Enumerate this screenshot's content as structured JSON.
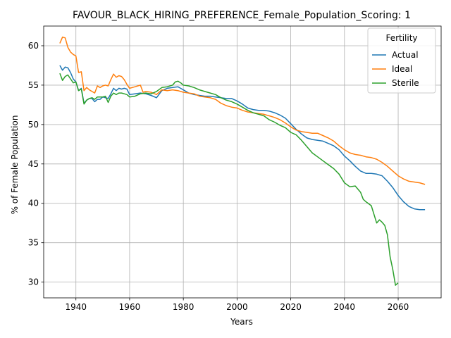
{
  "chart_data": {
    "type": "line",
    "title": "FAVOUR_BLACK_HIRING_PREFERENCE_Female_Population_Scoring: 1",
    "xlabel": "Years",
    "ylabel": "% of Female Population",
    "xlim": [
      1928,
      2076
    ],
    "ylim": [
      28,
      62.5
    ],
    "xticks": [
      1940,
      1960,
      1980,
      2000,
      2020,
      2040,
      2060
    ],
    "yticks": [
      30,
      35,
      40,
      45,
      50,
      55,
      60
    ],
    "grid": true,
    "legend": {
      "title": "Fertility",
      "placement": "top-right"
    },
    "series": [
      {
        "name": "Actual",
        "color": "#1f77b4",
        "points": [
          [
            1934,
            57.5
          ],
          [
            1935,
            56.9
          ],
          [
            1936,
            57.3
          ],
          [
            1937,
            57.2
          ],
          [
            1938,
            56.6
          ],
          [
            1939,
            55.8
          ],
          [
            1940,
            55.4
          ],
          [
            1941,
            54.3
          ],
          [
            1942,
            54.6
          ],
          [
            1943,
            52.7
          ],
          [
            1944,
            53.1
          ],
          [
            1945,
            53.3
          ],
          [
            1946,
            53.3
          ],
          [
            1947,
            52.9
          ],
          [
            1948,
            53.2
          ],
          [
            1949,
            53.2
          ],
          [
            1950,
            53.5
          ],
          [
            1951,
            53.4
          ],
          [
            1952,
            53.3
          ],
          [
            1953,
            53.9
          ],
          [
            1954,
            54.6
          ],
          [
            1955,
            54.3
          ],
          [
            1956,
            54.6
          ],
          [
            1957,
            54.5
          ],
          [
            1958,
            54.6
          ],
          [
            1959,
            54.5
          ],
          [
            1960,
            53.8
          ],
          [
            1962,
            53.9
          ],
          [
            1964,
            54.0
          ],
          [
            1966,
            53.9
          ],
          [
            1968,
            53.7
          ],
          [
            1970,
            53.4
          ],
          [
            1972,
            54.3
          ],
          [
            1974,
            54.6
          ],
          [
            1976,
            54.7
          ],
          [
            1978,
            54.8
          ],
          [
            1980,
            54.4
          ],
          [
            1982,
            54.0
          ],
          [
            1984,
            53.8
          ],
          [
            1986,
            53.7
          ],
          [
            1988,
            53.6
          ],
          [
            1990,
            53.6
          ],
          [
            1992,
            53.5
          ],
          [
            1994,
            53.4
          ],
          [
            1996,
            53.3
          ],
          [
            1998,
            53.3
          ],
          [
            2000,
            53.0
          ],
          [
            2002,
            52.6
          ],
          [
            2004,
            52.1
          ],
          [
            2006,
            51.9
          ],
          [
            2008,
            51.8
          ],
          [
            2010,
            51.8
          ],
          [
            2012,
            51.7
          ],
          [
            2014,
            51.5
          ],
          [
            2016,
            51.2
          ],
          [
            2018,
            50.8
          ],
          [
            2020,
            50.1
          ],
          [
            2022,
            49.4
          ],
          [
            2024,
            48.8
          ],
          [
            2026,
            48.3
          ],
          [
            2028,
            48.1
          ],
          [
            2030,
            48.0
          ],
          [
            2032,
            47.9
          ],
          [
            2034,
            47.6
          ],
          [
            2036,
            47.3
          ],
          [
            2038,
            46.8
          ],
          [
            2040,
            46.0
          ],
          [
            2042,
            45.4
          ],
          [
            2044,
            44.7
          ],
          [
            2046,
            44.1
          ],
          [
            2048,
            43.8
          ],
          [
            2050,
            43.8
          ],
          [
            2052,
            43.7
          ],
          [
            2054,
            43.5
          ],
          [
            2056,
            42.8
          ],
          [
            2058,
            42.0
          ],
          [
            2060,
            41.0
          ],
          [
            2062,
            40.2
          ],
          [
            2064,
            39.6
          ],
          [
            2066,
            39.3
          ],
          [
            2068,
            39.2
          ],
          [
            2070,
            39.2
          ]
        ]
      },
      {
        "name": "Ideal",
        "color": "#ff7f0e",
        "points": [
          [
            1934,
            60.3
          ],
          [
            1935,
            61.1
          ],
          [
            1936,
            61.0
          ],
          [
            1937,
            59.8
          ],
          [
            1938,
            59.2
          ],
          [
            1939,
            58.9
          ],
          [
            1940,
            58.7
          ],
          [
            1941,
            56.6
          ],
          [
            1942,
            56.7
          ],
          [
            1943,
            54.3
          ],
          [
            1944,
            54.7
          ],
          [
            1945,
            54.4
          ],
          [
            1946,
            54.2
          ],
          [
            1947,
            54.0
          ],
          [
            1948,
            54.9
          ],
          [
            1949,
            54.7
          ],
          [
            1950,
            54.9
          ],
          [
            1951,
            55.0
          ],
          [
            1952,
            54.9
          ],
          [
            1953,
            55.7
          ],
          [
            1954,
            56.4
          ],
          [
            1955,
            56.0
          ],
          [
            1956,
            56.2
          ],
          [
            1957,
            56.1
          ],
          [
            1958,
            55.7
          ],
          [
            1959,
            55.1
          ],
          [
            1960,
            54.6
          ],
          [
            1962,
            54.8
          ],
          [
            1964,
            55.0
          ],
          [
            1965,
            54.1
          ],
          [
            1966,
            54.2
          ],
          [
            1968,
            54.1
          ],
          [
            1970,
            53.8
          ],
          [
            1972,
            54.4
          ],
          [
            1974,
            54.3
          ],
          [
            1976,
            54.4
          ],
          [
            1978,
            54.3
          ],
          [
            1980,
            54.1
          ],
          [
            1982,
            54.0
          ],
          [
            1984,
            53.9
          ],
          [
            1986,
            53.6
          ],
          [
            1988,
            53.5
          ],
          [
            1990,
            53.4
          ],
          [
            1992,
            53.2
          ],
          [
            1994,
            52.7
          ],
          [
            1996,
            52.4
          ],
          [
            1998,
            52.2
          ],
          [
            2000,
            52.1
          ],
          [
            2002,
            51.8
          ],
          [
            2004,
            51.6
          ],
          [
            2006,
            51.5
          ],
          [
            2008,
            51.4
          ],
          [
            2010,
            51.3
          ],
          [
            2012,
            51.1
          ],
          [
            2014,
            50.9
          ],
          [
            2016,
            50.6
          ],
          [
            2018,
            50.2
          ],
          [
            2020,
            49.7
          ],
          [
            2022,
            49.3
          ],
          [
            2024,
            49.1
          ],
          [
            2026,
            49.0
          ],
          [
            2028,
            48.9
          ],
          [
            2030,
            48.9
          ],
          [
            2032,
            48.6
          ],
          [
            2034,
            48.3
          ],
          [
            2036,
            47.9
          ],
          [
            2038,
            47.3
          ],
          [
            2040,
            46.8
          ],
          [
            2042,
            46.4
          ],
          [
            2044,
            46.2
          ],
          [
            2046,
            46.1
          ],
          [
            2048,
            45.9
          ],
          [
            2050,
            45.8
          ],
          [
            2052,
            45.6
          ],
          [
            2054,
            45.2
          ],
          [
            2056,
            44.7
          ],
          [
            2058,
            44.1
          ],
          [
            2060,
            43.5
          ],
          [
            2062,
            43.1
          ],
          [
            2064,
            42.8
          ],
          [
            2066,
            42.7
          ],
          [
            2068,
            42.6
          ],
          [
            2070,
            42.4
          ]
        ]
      },
      {
        "name": "Sterile",
        "color": "#2ca02c",
        "points": [
          [
            1934,
            56.5
          ],
          [
            1935,
            55.6
          ],
          [
            1936,
            56.1
          ],
          [
            1937,
            56.3
          ],
          [
            1938,
            55.8
          ],
          [
            1939,
            55.3
          ],
          [
            1940,
            55.4
          ],
          [
            1941,
            54.3
          ],
          [
            1942,
            54.5
          ],
          [
            1943,
            52.6
          ],
          [
            1944,
            53.1
          ],
          [
            1945,
            53.3
          ],
          [
            1946,
            53.4
          ],
          [
            1947,
            53.2
          ],
          [
            1948,
            53.5
          ],
          [
            1949,
            53.5
          ],
          [
            1950,
            53.5
          ],
          [
            1951,
            53.6
          ],
          [
            1952,
            52.8
          ],
          [
            1953,
            53.6
          ],
          [
            1954,
            54.0
          ],
          [
            1955,
            53.8
          ],
          [
            1956,
            54.0
          ],
          [
            1957,
            54.0
          ],
          [
            1958,
            53.9
          ],
          [
            1959,
            53.8
          ],
          [
            1960,
            53.5
          ],
          [
            1962,
            53.6
          ],
          [
            1964,
            53.9
          ],
          [
            1966,
            54.0
          ],
          [
            1968,
            53.9
          ],
          [
            1970,
            54.2
          ],
          [
            1972,
            54.7
          ],
          [
            1974,
            54.8
          ],
          [
            1976,
            55.0
          ],
          [
            1977,
            55.4
          ],
          [
            1978,
            55.5
          ],
          [
            1979,
            55.3
          ],
          [
            1980,
            55.0
          ],
          [
            1982,
            54.9
          ],
          [
            1984,
            54.7
          ],
          [
            1986,
            54.4
          ],
          [
            1988,
            54.2
          ],
          [
            1990,
            54.0
          ],
          [
            1992,
            53.8
          ],
          [
            1994,
            53.4
          ],
          [
            1996,
            53.1
          ],
          [
            1998,
            52.9
          ],
          [
            2000,
            52.6
          ],
          [
            2002,
            52.2
          ],
          [
            2004,
            51.8
          ],
          [
            2006,
            51.5
          ],
          [
            2008,
            51.3
          ],
          [
            2010,
            51.1
          ],
          [
            2012,
            50.6
          ],
          [
            2014,
            50.3
          ],
          [
            2016,
            49.9
          ],
          [
            2018,
            49.6
          ],
          [
            2020,
            49.0
          ],
          [
            2022,
            48.7
          ],
          [
            2024,
            48.0
          ],
          [
            2026,
            47.2
          ],
          [
            2028,
            46.4
          ],
          [
            2030,
            45.9
          ],
          [
            2032,
            45.4
          ],
          [
            2034,
            44.9
          ],
          [
            2036,
            44.4
          ],
          [
            2038,
            43.7
          ],
          [
            2040,
            42.6
          ],
          [
            2042,
            42.1
          ],
          [
            2044,
            42.2
          ],
          [
            2045,
            41.8
          ],
          [
            2046,
            41.4
          ],
          [
            2047,
            40.5
          ],
          [
            2048,
            40.2
          ],
          [
            2050,
            39.7
          ],
          [
            2052,
            37.5
          ],
          [
            2053,
            37.9
          ],
          [
            2054,
            37.6
          ],
          [
            2055,
            37.2
          ],
          [
            2056,
            36.0
          ],
          [
            2057,
            33.2
          ],
          [
            2058,
            31.6
          ],
          [
            2059,
            29.6
          ],
          [
            2060,
            29.9
          ]
        ]
      }
    ]
  }
}
